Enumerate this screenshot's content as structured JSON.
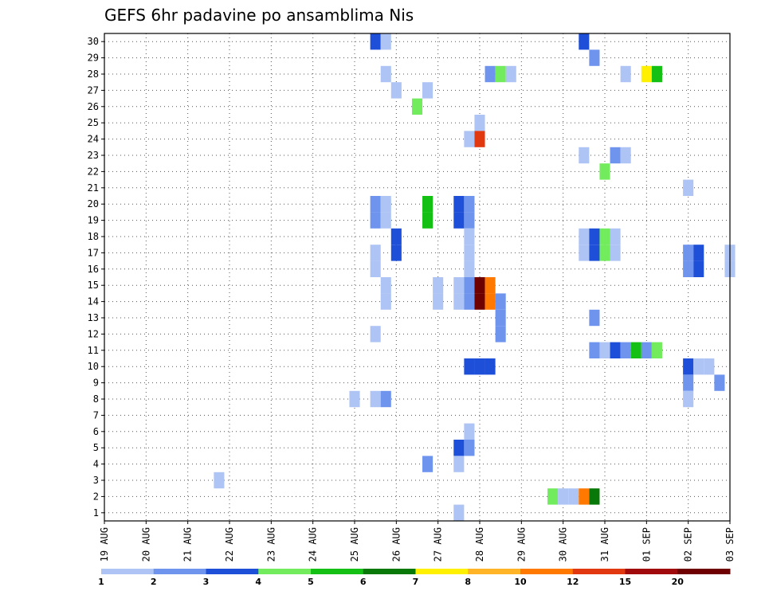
{
  "chart_data": {
    "type": "heatmap",
    "title": "GEFS 6hr padavine po ansamblima Nis",
    "xlabel": "",
    "ylabel": "",
    "x_ticks": [
      "19 AUG",
      "20 AUG",
      "21 AUG",
      "22 AUG",
      "23 AUG",
      "24 AUG",
      "25 AUG",
      "26 AUG",
      "27 AUG",
      "28 AUG",
      "29 AUG",
      "30 AUG",
      "31 AUG",
      "01 SEP",
      "02 SEP",
      "03 SEP"
    ],
    "y_ticks": [
      "1",
      "2",
      "3",
      "4",
      "5",
      "6",
      "7",
      "8",
      "9",
      "10",
      "11",
      "12",
      "13",
      "14",
      "15",
      "16",
      "17",
      "18",
      "19",
      "20",
      "21",
      "22",
      "23",
      "24",
      "25",
      "26",
      "27",
      "28",
      "29",
      "30"
    ],
    "xlim": [
      0,
      60
    ],
    "ylim": [
      0.5,
      30.5
    ],
    "grid": true,
    "legend_position": "bottom",
    "levels": [
      "1",
      "2",
      "3",
      "4",
      "5",
      "6",
      "7",
      "8",
      "10",
      "12",
      "15",
      "20"
    ],
    "colors": [
      "#aec4f4",
      "#6e94ee",
      "#1e4fd8",
      "#72ec5c",
      "#14c014",
      "#087808",
      "#fff000",
      "#ffb428",
      "#ff7800",
      "#e13810",
      "#a00a0a",
      "#6e0000"
    ],
    "cells": [
      {
        "member": 30,
        "t": 26,
        "c": 2
      },
      {
        "member": 30,
        "t": 27,
        "c": 0
      },
      {
        "member": 30,
        "t": 46,
        "c": 2
      },
      {
        "member": 29,
        "t": 47,
        "c": 1
      },
      {
        "member": 28,
        "t": 27,
        "c": 0
      },
      {
        "member": 28,
        "t": 37,
        "c": 1
      },
      {
        "member": 28,
        "t": 38,
        "c": 3
      },
      {
        "member": 28,
        "t": 39,
        "c": 0
      },
      {
        "member": 28,
        "t": 50,
        "c": 0
      },
      {
        "member": 28,
        "t": 52,
        "c": 6
      },
      {
        "member": 28,
        "t": 53,
        "c": 4
      },
      {
        "member": 27,
        "t": 28,
        "c": 0
      },
      {
        "member": 27,
        "t": 31,
        "c": 0
      },
      {
        "member": 26,
        "t": 30,
        "c": 3
      },
      {
        "member": 25,
        "t": 36,
        "c": 0
      },
      {
        "member": 24,
        "t": 35,
        "c": 0
      },
      {
        "member": 24,
        "t": 36,
        "c": 9
      },
      {
        "member": 23,
        "t": 46,
        "c": 0
      },
      {
        "member": 23,
        "t": 49,
        "c": 1
      },
      {
        "member": 23,
        "t": 50,
        "c": 0
      },
      {
        "member": 22,
        "t": 48,
        "c": 3
      },
      {
        "member": 21,
        "t": 56,
        "c": 0
      },
      {
        "member": 20,
        "t": 26,
        "c": 1
      },
      {
        "member": 20,
        "t": 27,
        "c": 0
      },
      {
        "member": 20,
        "t": 31,
        "c": 4
      },
      {
        "member": 20,
        "t": 34,
        "c": 2
      },
      {
        "member": 20,
        "t": 35,
        "c": 1
      },
      {
        "member": 19,
        "t": 26,
        "c": 1
      },
      {
        "member": 19,
        "t": 27,
        "c": 0
      },
      {
        "member": 19,
        "t": 31,
        "c": 4
      },
      {
        "member": 19,
        "t": 34,
        "c": 2
      },
      {
        "member": 19,
        "t": 35,
        "c": 1
      },
      {
        "member": 18,
        "t": 28,
        "c": 2
      },
      {
        "member": 18,
        "t": 35,
        "c": 0
      },
      {
        "member": 18,
        "t": 46,
        "c": 0
      },
      {
        "member": 18,
        "t": 47,
        "c": 2
      },
      {
        "member": 18,
        "t": 48,
        "c": 3
      },
      {
        "member": 18,
        "t": 49,
        "c": 0
      },
      {
        "member": 17,
        "t": 28,
        "c": 2
      },
      {
        "member": 17,
        "t": 35,
        "c": 0
      },
      {
        "member": 17,
        "t": 46,
        "c": 0
      },
      {
        "member": 17,
        "t": 47,
        "c": 2
      },
      {
        "member": 17,
        "t": 48,
        "c": 3
      },
      {
        "member": 17,
        "t": 49,
        "c": 0
      },
      {
        "member": 17,
        "t": 26,
        "c": 0
      },
      {
        "member": 17,
        "t": 56,
        "c": 1
      },
      {
        "member": 17,
        "t": 57,
        "c": 2
      },
      {
        "member": 17,
        "t": 60,
        "c": 0
      },
      {
        "member": 16,
        "t": 26,
        "c": 0
      },
      {
        "member": 16,
        "t": 35,
        "c": 0
      },
      {
        "member": 16,
        "t": 56,
        "c": 1
      },
      {
        "member": 16,
        "t": 57,
        "c": 2
      },
      {
        "member": 16,
        "t": 60,
        "c": 0
      },
      {
        "member": 15,
        "t": 27,
        "c": 0
      },
      {
        "member": 15,
        "t": 32,
        "c": 0
      },
      {
        "member": 15,
        "t": 34,
        "c": 0
      },
      {
        "member": 15,
        "t": 35,
        "c": 1
      },
      {
        "member": 15,
        "t": 36,
        "c": 11
      },
      {
        "member": 15,
        "t": 37,
        "c": 8
      },
      {
        "member": 14,
        "t": 27,
        "c": 0
      },
      {
        "member": 14,
        "t": 32,
        "c": 0
      },
      {
        "member": 14,
        "t": 34,
        "c": 0
      },
      {
        "member": 14,
        "t": 35,
        "c": 1
      },
      {
        "member": 14,
        "t": 36,
        "c": 11
      },
      {
        "member": 14,
        "t": 37,
        "c": 8
      },
      {
        "member": 14,
        "t": 38,
        "c": 1
      },
      {
        "member": 13,
        "t": 38,
        "c": 1
      },
      {
        "member": 13,
        "t": 47,
        "c": 1
      },
      {
        "member": 12,
        "t": 26,
        "c": 0
      },
      {
        "member": 12,
        "t": 38,
        "c": 1
      },
      {
        "member": 11,
        "t": 47,
        "c": 1
      },
      {
        "member": 11,
        "t": 48,
        "c": 0
      },
      {
        "member": 11,
        "t": 49,
        "c": 2
      },
      {
        "member": 11,
        "t": 50,
        "c": 1
      },
      {
        "member": 11,
        "t": 51,
        "c": 4
      },
      {
        "member": 11,
        "t": 52,
        "c": 1
      },
      {
        "member": 11,
        "t": 53,
        "c": 3
      },
      {
        "member": 10,
        "t": 35,
        "c": 2
      },
      {
        "member": 10,
        "t": 36,
        "c": 2
      },
      {
        "member": 10,
        "t": 37,
        "c": 2
      },
      {
        "member": 10,
        "t": 56,
        "c": 2
      },
      {
        "member": 10,
        "t": 57,
        "c": 0
      },
      {
        "member": 10,
        "t": 58,
        "c": 0
      },
      {
        "member": 9,
        "t": 56,
        "c": 1
      },
      {
        "member": 9,
        "t": 59,
        "c": 1
      },
      {
        "member": 8,
        "t": 24,
        "c": 0
      },
      {
        "member": 8,
        "t": 26,
        "c": 0
      },
      {
        "member": 8,
        "t": 27,
        "c": 1
      },
      {
        "member": 8,
        "t": 56,
        "c": 0
      },
      {
        "member": 6,
        "t": 35,
        "c": 0
      },
      {
        "member": 5,
        "t": 34,
        "c": 2
      },
      {
        "member": 5,
        "t": 35,
        "c": 1
      },
      {
        "member": 4,
        "t": 31,
        "c": 1
      },
      {
        "member": 4,
        "t": 34,
        "c": 0
      },
      {
        "member": 3,
        "t": 11,
        "c": 0
      },
      {
        "member": 2,
        "t": 43,
        "c": 3
      },
      {
        "member": 2,
        "t": 44,
        "c": 0
      },
      {
        "member": 2,
        "t": 45,
        "c": 0
      },
      {
        "member": 2,
        "t": 46,
        "c": 8
      },
      {
        "member": 2,
        "t": 47,
        "c": 5
      },
      {
        "member": 1,
        "t": 34,
        "c": 0
      }
    ]
  }
}
